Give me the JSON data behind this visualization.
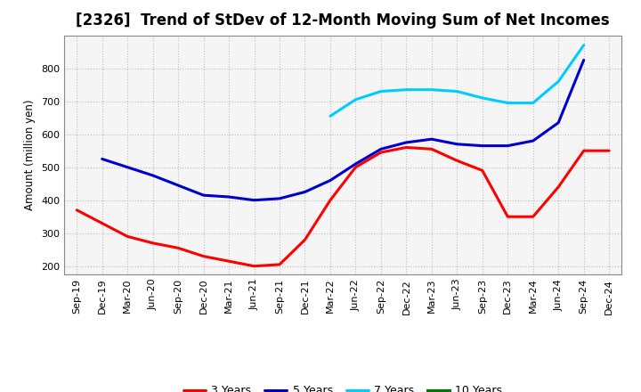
{
  "title": "[2326]  Trend of StDev of 12-Month Moving Sum of Net Incomes",
  "ylabel": "Amount (million yen)",
  "x_labels": [
    "Sep-19",
    "Dec-19",
    "Mar-20",
    "Jun-20",
    "Sep-20",
    "Dec-20",
    "Mar-21",
    "Jun-21",
    "Sep-21",
    "Dec-21",
    "Mar-22",
    "Jun-22",
    "Sep-22",
    "Dec-22",
    "Mar-23",
    "Jun-23",
    "Sep-23",
    "Dec-23",
    "Mar-24",
    "Jun-24",
    "Sep-24",
    "Dec-24"
  ],
  "series": {
    "3 Years": {
      "color": "#ff0000",
      "values": [
        370,
        330,
        290,
        270,
        255,
        230,
        215,
        200,
        205,
        280,
        400,
        500,
        545,
        560,
        555,
        520,
        490,
        350,
        350,
        440,
        550,
        550
      ]
    },
    "5 Years": {
      "color": "#0000cc",
      "values": [
        null,
        525,
        500,
        475,
        445,
        415,
        410,
        400,
        405,
        425,
        460,
        510,
        555,
        575,
        585,
        570,
        565,
        565,
        580,
        635,
        825,
        null
      ]
    },
    "7 Years": {
      "color": "#00ccff",
      "values": [
        null,
        null,
        null,
        null,
        null,
        null,
        null,
        null,
        null,
        null,
        655,
        705,
        730,
        735,
        735,
        730,
        710,
        695,
        695,
        760,
        870,
        null
      ]
    },
    "10 Years": {
      "color": "#007700",
      "values": [
        null,
        null,
        null,
        null,
        null,
        null,
        null,
        null,
        null,
        null,
        null,
        null,
        null,
        null,
        null,
        null,
        null,
        null,
        null,
        null,
        null,
        null
      ]
    }
  },
  "ylim": [
    175,
    900
  ],
  "yticks": [
    200,
    300,
    400,
    500,
    600,
    700,
    800
  ],
  "background_color": "#ffffff",
  "plot_bg_color": "#f5f5f5",
  "grid_color": "#bbbbbb",
  "line_width": 2.2,
  "title_fontsize": 12,
  "axis_fontsize": 8.5,
  "tick_fontsize": 8,
  "legend_fontsize": 9
}
